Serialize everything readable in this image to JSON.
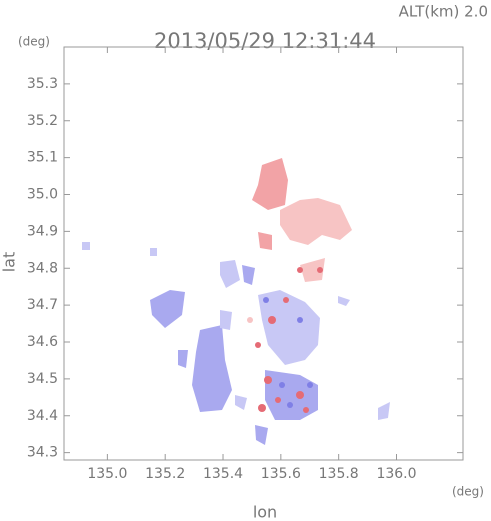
{
  "chart_data": {
    "type": "map",
    "title": "2013/05/29 12:31:44",
    "subtitle": "ALT(km) 2.0",
    "y_unit": "(deg)",
    "x_unit": "(deg)",
    "xlabel": "lon",
    "ylabel": "lat",
    "xlim": [
      134.85,
      136.23
    ],
    "ylim": [
      34.28,
      35.4
    ],
    "xticks": [
      {
        "value": 135.0,
        "label": "135.0"
      },
      135.2,
      135.4,
      135.6,
      135.8,
      {
        "value": 136.0,
        "label": "136.0"
      }
    ],
    "yticks": [
      35.3,
      35.2,
      35.1,
      {
        "value": 35.0,
        "label": "35.0"
      },
      34.9,
      34.8,
      34.7,
      34.6,
      34.5,
      34.4,
      34.3
    ]
  }
}
